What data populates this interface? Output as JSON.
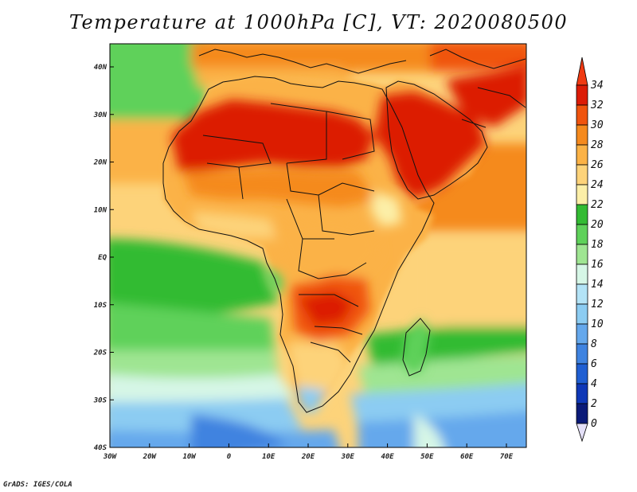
{
  "title": "Temperature at 1000hPa [C], VT: 2020080500",
  "credit": "GrADS: IGES/COLA",
  "lat_labels": [
    "40N",
    "30N",
    "20N",
    "10N",
    "EQ",
    "10S",
    "20S",
    "30S",
    "40S"
  ],
  "lon_labels": [
    "30W",
    "20W",
    "10W",
    "0",
    "10E",
    "20E",
    "30E",
    "40E",
    "50E",
    "60E",
    "70E"
  ],
  "colorbar": {
    "labels": [
      "34",
      "32",
      "30",
      "28",
      "26",
      "24",
      "22",
      "20",
      "18",
      "16",
      "14",
      "12",
      "10",
      "8",
      "6",
      "4",
      "2",
      "0"
    ],
    "colors": [
      "#f03a12",
      "#dc1c06",
      "#f0540e",
      "#f58a1e",
      "#fbb246",
      "#fdd37a",
      "#fcefa8",
      "#33bb33",
      "#5fd15a",
      "#9fe592",
      "#d6f6e6",
      "#b3e3f6",
      "#8cccf2",
      "#65a8ec",
      "#3f83e0",
      "#205fd2",
      "#0f38b7",
      "#0a1a78"
    ]
  },
  "palette": {
    "ocean_cool": "#5fa8ec",
    "ocean_cold": "#3f83e0",
    "ocean_mid": "#9fe592",
    "ocean_green": "#33bb33",
    "ocean_warm": "#fdd37a",
    "land_hot": "#dc1c06",
    "land_warm": "#f58a1e",
    "land_mild": "#fbb246",
    "border": "#111111"
  }
}
